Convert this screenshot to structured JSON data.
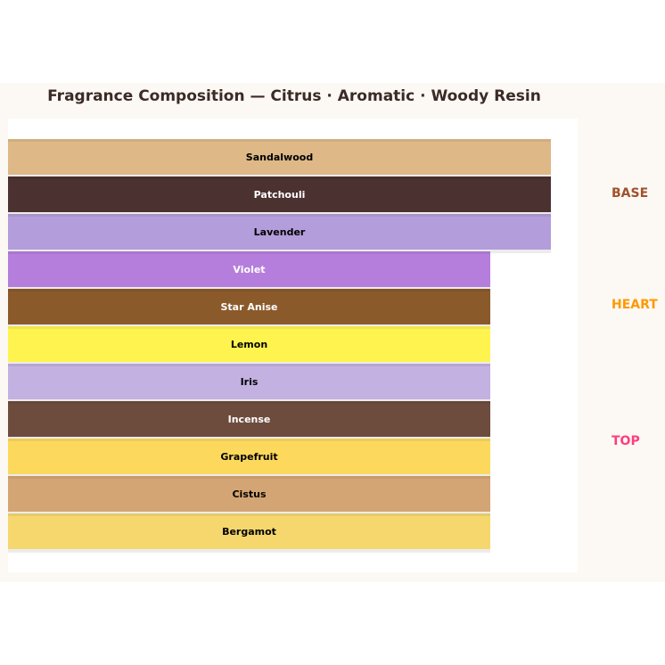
{
  "title": "Fragrance Composition — Citrus · Aromatic · Woody Resin",
  "notes": [
    {
      "name": "Sandalwood",
      "color": "#deb887",
      "text_color": "#000000"
    },
    {
      "name": "Patchouli",
      "color": "#4b3130",
      "text_color": "#ffffff"
    },
    {
      "name": "Lavender",
      "color": "#b39ddb",
      "text_color": "#000000"
    },
    {
      "name": "Violet",
      "color": "#b57edc",
      "text_color": "#ffffff"
    },
    {
      "name": "Star Anise",
      "color": "#8b5a2b",
      "text_color": "#ffffff"
    },
    {
      "name": "Lemon",
      "color": "#fff44f",
      "text_color": "#000000"
    },
    {
      "name": "Iris",
      "color": "#c3b1e1",
      "text_color": "#000000"
    },
    {
      "name": "Incense",
      "color": "#6d4c3d",
      "text_color": "#ffffff"
    },
    {
      "name": "Grapefruit",
      "color": "#fcd95c",
      "text_color": "#000000"
    },
    {
      "name": "Cistus",
      "color": "#d4a574",
      "text_color": "#000000"
    },
    {
      "name": "Bergamot",
      "color": "#f5d76e",
      "text_color": "#000000"
    }
  ],
  "tiers": [
    {
      "label": "BASE",
      "color": "#a0522d"
    },
    {
      "label": "HEART",
      "color": "#ff9800"
    },
    {
      "label": "TOP",
      "color": "#ff3d7f"
    }
  ]
}
